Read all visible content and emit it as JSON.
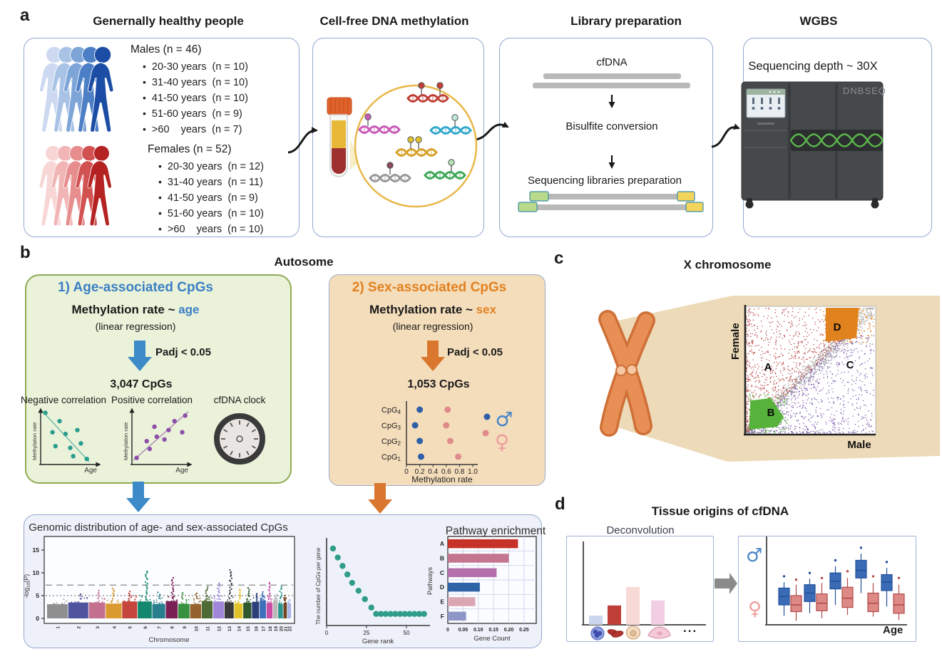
{
  "figure": {
    "panel_a": {
      "label": "a",
      "cohort": {
        "title": "Genernally healthy people",
        "males_header": "Males (n = 46)",
        "males_items": [
          "20-30 years  (n = 10)",
          "31-40 years  (n = 10)",
          "41-50 years  (n = 10)",
          "51-60 years  (n = 9)",
          ">60    years  (n = 7)"
        ],
        "females_header": "Females (n = 52)",
        "females_items": [
          "20-30 years  (n = 12)",
          "31-40 years  (n = 11)",
          "41-50 years  (n = 9)",
          "51-60 years  (n = 10)",
          ">60    years  (n = 10)"
        ]
      },
      "cfdna_box": {
        "title": "Cell-free DNA methylation"
      },
      "library_box": {
        "title": "Library preparation",
        "step1": "cfDNA",
        "step2": "Bisulfite conversion",
        "step3": "Sequencing libraries preparation"
      },
      "wgbs_box": {
        "title": "WGBS",
        "depth": "Sequencing depth ~ 30X",
        "machine_label": "DNBSEQ"
      }
    },
    "panel_b": {
      "label": "b",
      "title": "Autosome",
      "age_box": {
        "heading": "1) Age-associated CpGs",
        "formula_prefix": "Methylation rate ~ ",
        "formula_highlight": "age",
        "method": "(linear regression)",
        "threshold": "Padj < 0.05",
        "count": "3,047 CpGs",
        "clock_label": "cfDNA clock"
      },
      "sex_box": {
        "heading": "2) Sex-associated CpGs",
        "formula_prefix": "Methylation rate ~ ",
        "formula_highlight": "sex",
        "method": "(linear regression)",
        "threshold": "Padj < 0.05",
        "count": "1,053 CpGs"
      }
    },
    "panel_c": {
      "label": "c",
      "title": "X chromosome"
    },
    "panel_d": {
      "label": "d",
      "title": "Tissue origins of cfDNA",
      "ellipsis": "..."
    }
  },
  "colors": {
    "age_accent": "#3b7fc4",
    "sex_accent": "#e2801f",
    "male_blue": "#4a86c8",
    "female_pink": "#ef9d9d"
  },
  "chart_data": [
    {
      "id": "negative-correlation",
      "type": "scatter",
      "title": "Negative correlation",
      "xlabel": "Age",
      "ylabel": "Methylation rate",
      "color": "#2a9d8f",
      "points": [
        [
          0.08,
          0.93
        ],
        [
          0.32,
          0.78
        ],
        [
          0.2,
          0.58
        ],
        [
          0.42,
          0.55
        ],
        [
          0.62,
          0.62
        ],
        [
          0.25,
          0.33
        ],
        [
          0.5,
          0.3
        ],
        [
          0.68,
          0.38
        ],
        [
          0.55,
          0.15
        ],
        [
          0.78,
          0.1
        ]
      ],
      "trend": [
        [
          0.02,
          0.97
        ],
        [
          0.82,
          0.05
        ]
      ]
    },
    {
      "id": "positive-correlation",
      "type": "scatter",
      "title": "Positive correlation",
      "xlabel": "Age",
      "ylabel": "Methylation rate",
      "color": "#8d4fa8",
      "points": [
        [
          0.08,
          0.12
        ],
        [
          0.25,
          0.42
        ],
        [
          0.3,
          0.28
        ],
        [
          0.42,
          0.5
        ],
        [
          0.38,
          0.68
        ],
        [
          0.55,
          0.45
        ],
        [
          0.62,
          0.62
        ],
        [
          0.72,
          0.78
        ],
        [
          0.85,
          0.58
        ],
        [
          0.9,
          0.88
        ]
      ],
      "trend": [
        [
          0.03,
          0.08
        ],
        [
          0.95,
          0.95
        ]
      ]
    },
    {
      "id": "sex-cpg-dotplot",
      "type": "scatter",
      "xlabel": "Methylation rate",
      "xticks": [
        0,
        0.2,
        0.4,
        0.6,
        0.8,
        1.0
      ],
      "categories": [
        "CpG4",
        "CpG3",
        "CpG2",
        "CpG1"
      ],
      "series": [
        {
          "name": "Male",
          "symbol": "♂",
          "color": "#2e5fa8",
          "values": [
            0.2,
            0.13,
            0.2,
            0.22
          ]
        },
        {
          "name": "Female",
          "symbol": "♀",
          "color": "#e08b8b",
          "values": [
            0.62,
            0.6,
            0.66,
            0.78
          ]
        }
      ]
    },
    {
      "id": "manhattan",
      "type": "scatter",
      "title": "Genomic distribution of age- and sex-associated CpGs",
      "xlabel": "Chromosome",
      "ylabel": "-log10(P)",
      "yticks": [
        0,
        5,
        10,
        15
      ],
      "ylim": [
        0,
        17.5
      ],
      "thresholds": {
        "dashed": 7.3,
        "dotted": 5
      },
      "chromosomes": [
        {
          "chr": "1",
          "color": "#8f8f8f",
          "peak": 4.8
        },
        {
          "chr": "2",
          "color": "#50549e",
          "peak": 5.3
        },
        {
          "chr": "3",
          "color": "#c4708f",
          "peak": 6.1
        },
        {
          "chr": "4",
          "color": "#d99a30",
          "peak": 6.6
        },
        {
          "chr": "5",
          "color": "#c4463c",
          "peak": 5.9
        },
        {
          "chr": "6",
          "color": "#13886f",
          "peak": 10.3
        },
        {
          "chr": "7",
          "color": "#2a7f8f",
          "peak": 5.7
        },
        {
          "chr": "8",
          "color": "#7a2055",
          "peak": 8.9
        },
        {
          "chr": "9",
          "color": "#37913f",
          "peak": 5.6
        },
        {
          "chr": "10",
          "color": "#96622e",
          "peak": 5.5
        },
        {
          "chr": "11",
          "color": "#4f6b35",
          "peak": 6.9
        },
        {
          "chr": "12",
          "color": "#9f86d8",
          "peak": 7.7
        },
        {
          "chr": "13",
          "color": "#3a3a3a",
          "peak": 10.6
        },
        {
          "chr": "14",
          "color": "#e3c32b",
          "peak": 6.3
        },
        {
          "chr": "15",
          "color": "#30582f",
          "peak": 6.7
        },
        {
          "chr": "16",
          "color": "#2c3f78",
          "peak": 5.4
        },
        {
          "chr": "17",
          "color": "#3f6fba",
          "peak": 5.8
        },
        {
          "chr": "18",
          "color": "#c94fa5",
          "peak": 7.8
        },
        {
          "chr": "19",
          "color": "#b9b9b9",
          "peak": 5.2
        },
        {
          "chr": "20",
          "color": "#2a968c",
          "peak": 7.0
        },
        {
          "chr": "21",
          "color": "#6e4523",
          "peak": 5.0
        },
        {
          "chr": "22",
          "color": "#aab4e6",
          "peak": 4.8
        }
      ]
    },
    {
      "id": "gene-rank",
      "type": "scatter",
      "xlabel": "Gene rank",
      "ylabel": "The number of CpGs per gene",
      "xticks": [
        0,
        25,
        50
      ],
      "color": "#2f9d8a",
      "points": [
        [
          4,
          14.6
        ],
        [
          7,
          12.9
        ],
        [
          10,
          11.3
        ],
        [
          13,
          9.7
        ],
        [
          16,
          8.1
        ],
        [
          20,
          6.6
        ],
        [
          24,
          5.0
        ],
        [
          28,
          3.4
        ],
        [
          31,
          2.2
        ],
        [
          34,
          2.2
        ],
        [
          37,
          2.2
        ],
        [
          40,
          2.2
        ],
        [
          43,
          2.2
        ],
        [
          46,
          2.2
        ],
        [
          49,
          2.2
        ],
        [
          52,
          2.2
        ],
        [
          55,
          2.2
        ],
        [
          58,
          2.2
        ],
        [
          61,
          2.2
        ]
      ]
    },
    {
      "id": "pathway-enrichment",
      "type": "bar",
      "title": "Pathway enrichment",
      "categories": [
        "A",
        "B",
        "C",
        "D",
        "E",
        "F"
      ],
      "values": [
        0.23,
        0.2,
        0.16,
        0.105,
        0.09,
        0.06
      ],
      "colors": [
        "#c63228",
        "#c4768e",
        "#b470ad",
        "#2f63a8",
        "#dba6b4",
        "#8e96c8"
      ],
      "xlabel": "Gene Count",
      "ylabel": "Pathways",
      "xticks": [
        0,
        0.05,
        0.1,
        0.15,
        0.2,
        0.25
      ],
      "xlim": [
        0,
        0.29
      ]
    },
    {
      "id": "x-chromosome-scatter",
      "type": "scatter",
      "xlabel": "Male",
      "ylabel": "Female",
      "regions": [
        {
          "label": "A",
          "color": "#b23230"
        },
        {
          "label": "B",
          "color": "#56b23a"
        },
        {
          "label": "C",
          "color": "#6a45a2"
        },
        {
          "label": "D",
          "color": "#e0821e"
        }
      ],
      "diagonal_color": "#9b9b9b"
    },
    {
      "id": "deconvolution",
      "type": "bar",
      "title": "Deconvolution",
      "categories": [
        "leukocyte",
        "erythrocyte",
        "hepatocyte",
        "epithelial cell"
      ],
      "values": [
        0.11,
        0.23,
        0.45,
        0.29
      ],
      "colors": [
        "#ccd5ee",
        "#bf3e38",
        "#f7dad6",
        "#f2cee5"
      ]
    },
    {
      "id": "sex-age-boxplot",
      "type": "boxplot",
      "xlabel": "Age",
      "series": [
        {
          "name": "Male",
          "symbol": "♂",
          "color": "#3a6cb5",
          "boxes": [
            {
              "lo": 0.09,
              "q1": 0.22,
              "med": 0.32,
              "q3": 0.42,
              "hi": 0.49,
              "out": 0.56
            },
            {
              "lo": 0.12,
              "q1": 0.26,
              "med": 0.36,
              "q3": 0.46,
              "hi": 0.53,
              "out": 0.6
            },
            {
              "lo": 0.22,
              "q1": 0.41,
              "med": 0.5,
              "q3": 0.6,
              "hi": 0.68,
              "out": 0.75
            },
            {
              "lo": 0.36,
              "q1": 0.54,
              "med": 0.63,
              "q3": 0.75,
              "hi": 0.83,
              "out": 0.9
            },
            {
              "lo": 0.2,
              "q1": 0.39,
              "med": 0.49,
              "q3": 0.58,
              "hi": 0.66,
              "out": 0.73
            }
          ]
        },
        {
          "name": "Female",
          "symbol": "♀",
          "color": "#dd8a87",
          "boxes": [
            {
              "lo": 0.03,
              "q1": 0.14,
              "med": 0.22,
              "q3": 0.33,
              "hi": 0.46,
              "out": 0.52
            },
            {
              "lo": 0.06,
              "q1": 0.15,
              "med": 0.24,
              "q3": 0.35,
              "hi": 0.48,
              "out": 0.54
            },
            {
              "lo": 0.1,
              "q1": 0.19,
              "med": 0.3,
              "q3": 0.43,
              "hi": 0.54,
              "out": 0.62
            },
            {
              "lo": 0.08,
              "q1": 0.14,
              "med": 0.24,
              "q3": 0.36,
              "hi": 0.48,
              "out": 0.56
            },
            {
              "lo": 0.04,
              "q1": 0.12,
              "med": 0.22,
              "q3": 0.35,
              "hi": 0.46,
              "out": 0.54
            }
          ]
        }
      ]
    }
  ]
}
